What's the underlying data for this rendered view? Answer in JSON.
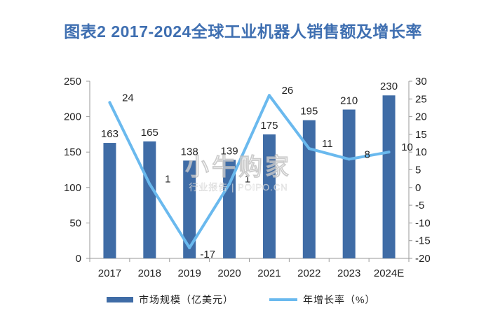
{
  "chart_data": {
    "type": "bar",
    "title": "图表2 2017-2024全球工业机器人销售额及增长率",
    "categories": [
      "2017",
      "2018",
      "2019",
      "2020",
      "2021",
      "2022",
      "2023",
      "2024E"
    ],
    "series": [
      {
        "name": "市场规模（亿美元）",
        "type": "bar",
        "axis": "left",
        "color": "#3f6ca6",
        "values": [
          163,
          165,
          138,
          139,
          175,
          195,
          210,
          230
        ]
      },
      {
        "name": "年增长率（%）",
        "type": "line",
        "axis": "right",
        "color": "#6ab9ee",
        "values": [
          24,
          1,
          -17,
          1,
          26,
          11,
          8,
          10
        ]
      }
    ],
    "left_axis": {
      "ylim": [
        0,
        250
      ],
      "ticks": [
        "0",
        "50",
        "100",
        "150",
        "200",
        "250"
      ]
    },
    "right_axis": {
      "ylim": [
        -20,
        30
      ],
      "ticks": [
        "-20",
        "-15",
        "-10",
        "-5",
        "0",
        "5",
        "10",
        "15",
        "20",
        "25",
        "30"
      ]
    },
    "legend_position": "bottom",
    "grid": false
  },
  "watermark": {
    "main": "小牛购家",
    "sub": "行业报告 | POIPO.CN"
  }
}
